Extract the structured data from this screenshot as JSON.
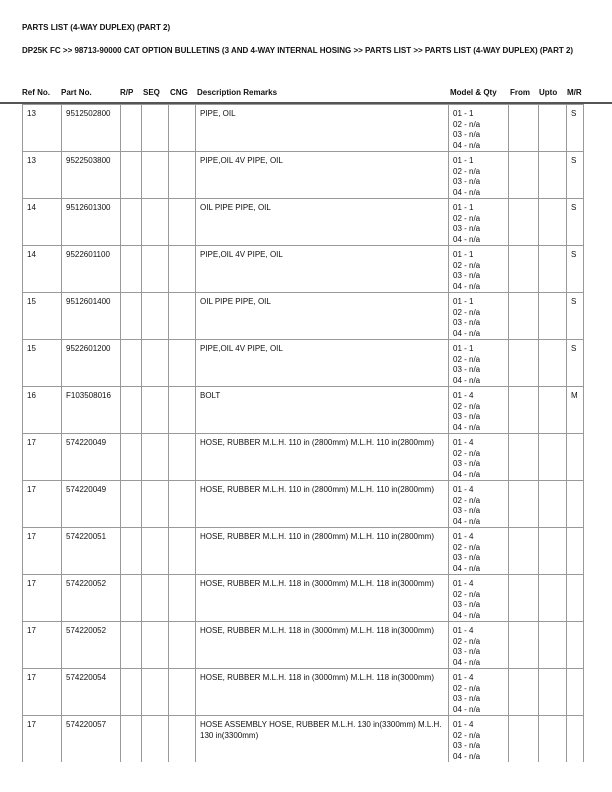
{
  "title": "PARTS LIST (4-WAY DUPLEX) (PART 2)",
  "breadcrumb": "DP25K FC >> 98713-90000 CAT OPTION BULLETINS (3 AND 4-WAY INTERNAL HOSING >> PARTS LIST >> PARTS LIST (4-WAY DUPLEX) (PART 2)",
  "headers": {
    "ref": "Ref No.",
    "part": "Part No.",
    "rp": "R/P",
    "seq": "SEQ",
    "cng": "CNG",
    "desc": "Description Remarks",
    "model": "Model & Qty",
    "from": "From",
    "upto": "Upto",
    "mr": "M/R"
  },
  "rows": [
    {
      "ref": "13",
      "part": "9512502800",
      "desc": "PIPE, OIL",
      "qty1": "01 - 1",
      "mr": "S"
    },
    {
      "ref": "13",
      "part": "9522503800",
      "desc": "PIPE,OIL 4V PIPE, OIL",
      "qty1": "01 - 1",
      "mr": "S"
    },
    {
      "ref": "14",
      "part": "9512601300",
      "desc": "OIL PIPE PIPE, OIL",
      "qty1": "01 - 1",
      "mr": "S"
    },
    {
      "ref": "14",
      "part": "9522601100",
      "desc": "PIPE,OIL 4V PIPE, OIL",
      "qty1": "01 - 1",
      "mr": "S"
    },
    {
      "ref": "15",
      "part": "9512601400",
      "desc": "OIL PIPE PIPE, OIL",
      "qty1": "01 - 1",
      "mr": "S"
    },
    {
      "ref": "15",
      "part": "9522601200",
      "desc": "PIPE,OIL 4V PIPE, OIL",
      "qty1": "01 - 1",
      "mr": "S"
    },
    {
      "ref": "16",
      "part": "F103508016",
      "desc": "BOLT",
      "qty1": "01 - 4",
      "mr": "M"
    },
    {
      "ref": "17",
      "part": "574220049",
      "desc": "HOSE, RUBBER M.L.H. 110 in (2800mm) M.L.H. 110 in(2800mm)",
      "qty1": "01 - 4",
      "mr": ""
    },
    {
      "ref": "17",
      "part": "574220049",
      "desc": "HOSE, RUBBER M.L.H. 110 in (2800mm) M.L.H. 110 in(2800mm)",
      "qty1": "01 - 4",
      "mr": ""
    },
    {
      "ref": "17",
      "part": "574220051",
      "desc": "HOSE, RUBBER M.L.H. 110 in (2800mm) M.L.H. 110 in(2800mm)",
      "qty1": "01 - 4",
      "mr": ""
    },
    {
      "ref": "17",
      "part": "574220052",
      "desc": "HOSE, RUBBER M.L.H. 118 in (3000mm) M.L.H. 118 in(3000mm)",
      "qty1": "01 - 4",
      "mr": ""
    },
    {
      "ref": "17",
      "part": "574220052",
      "desc": "HOSE, RUBBER M.L.H. 118 in (3000mm) M.L.H. 118 in(3000mm)",
      "qty1": "01 - 4",
      "mr": ""
    },
    {
      "ref": "17",
      "part": "574220054",
      "desc": "HOSE, RUBBER M.L.H. 118 in (3000mm) M.L.H. 118 in(3000mm)",
      "qty1": "01 - 4",
      "mr": ""
    },
    {
      "ref": "17",
      "part": "574220057",
      "desc": "HOSE ASSEMBLY HOSE, RUBBER M.L.H. 130 in(3300mm) M.L.H. 130 in(3300mm)",
      "qty1": "01 - 4",
      "mr": ""
    }
  ],
  "qty_other": [
    "02 - n/a",
    "03 - n/a",
    "04 - n/a"
  ]
}
